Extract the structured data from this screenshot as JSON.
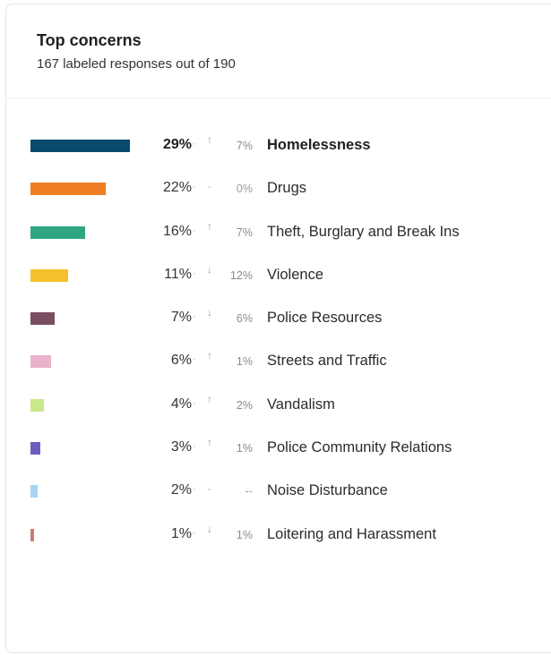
{
  "header": {
    "title": "Top concerns",
    "subtitle": "167 labeled responses out of 190"
  },
  "chart_data": {
    "type": "bar",
    "orientation": "horizontal",
    "title": "Top concerns",
    "subtitle": "167 labeled responses out of 190",
    "categories": [
      "Homelessness",
      "Drugs",
      "Theft, Burglary and Break Ins",
      "Violence",
      "Police Resources",
      "Streets and Traffic",
      "Vandalism",
      "Police Community Relations",
      "Noise Disturbance",
      "Loitering and Harassment"
    ],
    "values": [
      29,
      22,
      16,
      11,
      7,
      6,
      4,
      3,
      2,
      1
    ],
    "value_labels": [
      "29%",
      "22%",
      "16%",
      "11%",
      "7%",
      "6%",
      "4%",
      "3%",
      "2%",
      "1%"
    ],
    "change_direction": [
      "up",
      "flat",
      "up",
      "down",
      "down",
      "up",
      "up",
      "up",
      "flat",
      "down"
    ],
    "change_labels": [
      "7%",
      "0%",
      "7%",
      "12%",
      "6%",
      "1%",
      "2%",
      "1%",
      "--",
      "1%"
    ],
    "colors": [
      "#0b4a6f",
      "#ef7d22",
      "#2fa584",
      "#f5c02c",
      "#7a4e61",
      "#eab2cb",
      "#c8e88c",
      "#6f5cc0",
      "#a9d3f2",
      "#c97c72"
    ],
    "dot_glyph": "·",
    "arrow_glyphs": {
      "up": "↑",
      "down": "↓",
      "flat": "-"
    },
    "xlim": [
      0,
      29
    ],
    "grid": false,
    "legend": "none"
  }
}
